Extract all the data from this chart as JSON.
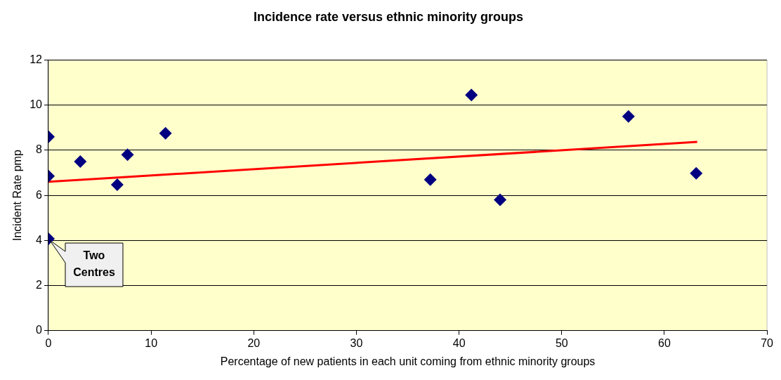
{
  "chart_data": {
    "type": "scatter",
    "title": "Incidence rate versus ethnic minority groups",
    "xlabel": "Percentage of new patients in each unit coming from ethnic minority groups",
    "ylabel": "Incident Rate pmp",
    "series": [
      {
        "type": "scatter",
        "color": "#000080",
        "marker": "diamond",
        "x": [
          0,
          0,
          0,
          3.1,
          6.7,
          7.7,
          11.4,
          37.2,
          41.2,
          44.0,
          56.5,
          63.1
        ],
        "values": [
          8.6,
          6.85,
          4.07,
          7.5,
          6.47,
          7.8,
          8.75,
          6.7,
          10.45,
          5.8,
          9.5,
          6.98
        ]
      },
      {
        "type": "line",
        "color": "#ff0000",
        "marker": "none",
        "x": [
          0,
          63.2
        ],
        "values": [
          6.6,
          8.37
        ]
      }
    ],
    "xlim": [
      0,
      70
    ],
    "xticks": [
      0,
      10,
      20,
      30,
      40,
      50,
      60,
      70
    ],
    "ylim": [
      0,
      12
    ],
    "yticks": [
      0,
      2,
      4,
      6,
      8,
      10,
      12
    ],
    "grid": "y",
    "legend": false,
    "annotations": [
      {
        "text": "Two Centres",
        "x": 0,
        "y": 4.07
      }
    ]
  }
}
